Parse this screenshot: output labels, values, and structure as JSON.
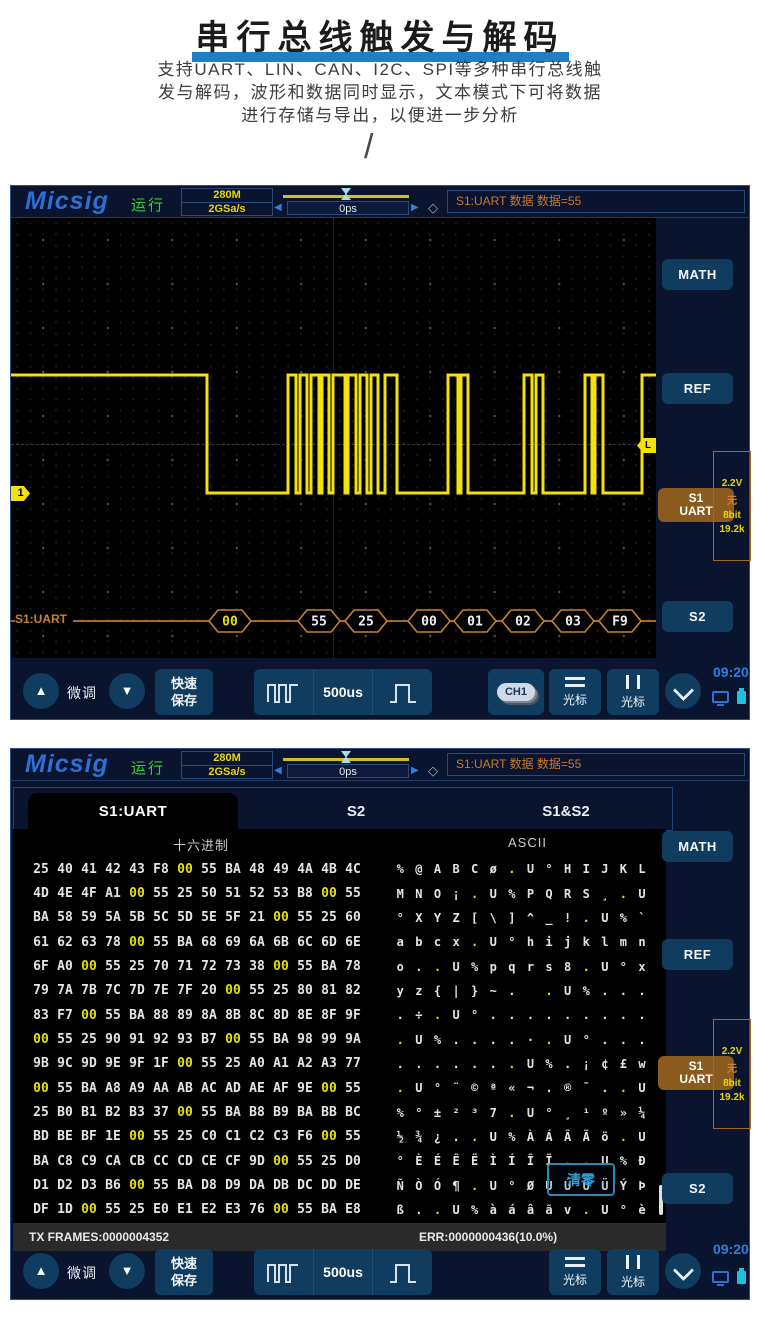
{
  "header": {
    "title": "串行总线触发与解码",
    "subtitle_line1": "支持UART、LIN、CAN、I2C、SPI等多种串行总线触",
    "subtitle_line2": "发与解码，波形和数据同时显示，文本模式下可将数据",
    "subtitle_line3": "进行存储与导出，以便进一步分析",
    "slash": "/"
  },
  "statusbar": {
    "logo": "Micsig",
    "run_state": "运行",
    "bandwidth": "280M",
    "sample_rate": "2GSa/s",
    "horizontal_position": "0ps",
    "trigger_info": "S1:UART 数据 数据=55",
    "left_arrow": "◀",
    "right_arrow": "▶",
    "diamond": "◇",
    "t_marker": "T"
  },
  "sidebar": {
    "math": "MATH",
    "ref": "REF",
    "s1_line1": "S1",
    "s1_line2": "UART",
    "s2": "S2",
    "channel_info": {
      "voltage": "2.2V",
      "parity": "无",
      "data_bits": "8bit",
      "baud_rate": "19.2k"
    }
  },
  "scope1": {
    "channel_badge": "1",
    "trigger_level_badge": "L",
    "decode_label": "S1:UART",
    "decode_values": [
      "00",
      "55",
      "25",
      "00",
      "01",
      "02",
      "03",
      "F9"
    ],
    "decode_highlight_index": 0
  },
  "toolbar": {
    "up_arrow": "▲",
    "down_arrow": "▼",
    "fine_tune": "微调",
    "quick_save_line1": "快速",
    "quick_save_line2": "保存",
    "timebase": "500us",
    "ch1": "CH1",
    "cursor_h_label": "光标",
    "cursor_v_label": "光标",
    "time": "09:20"
  },
  "scope2": {
    "tabs": [
      "S1:UART",
      "S2",
      "S1&S2"
    ],
    "active_tab": "S1:UART",
    "hex_header": "十六进制",
    "ascii_header": "ASCII",
    "hex_rows": [
      [
        "25",
        "40",
        "41",
        "42",
        "43",
        "F8",
        "00",
        "55",
        "BA",
        "48",
        "49",
        "4A",
        "4B",
        "4C"
      ],
      [
        "4D",
        "4E",
        "4F",
        "A1",
        "00",
        "55",
        "25",
        "50",
        "51",
        "52",
        "53",
        "B8",
        "00",
        "55"
      ],
      [
        "BA",
        "58",
        "59",
        "5A",
        "5B",
        "5C",
        "5D",
        "5E",
        "5F",
        "21",
        "00",
        "55",
        "25",
        "60"
      ],
      [
        "61",
        "62",
        "63",
        "78",
        "00",
        "55",
        "BA",
        "68",
        "69",
        "6A",
        "6B",
        "6C",
        "6D",
        "6E"
      ],
      [
        "6F",
        "A0",
        "00",
        "55",
        "25",
        "70",
        "71",
        "72",
        "73",
        "38",
        "00",
        "55",
        "BA",
        "78"
      ],
      [
        "79",
        "7A",
        "7B",
        "7C",
        "7D",
        "7E",
        "7F",
        "20",
        "00",
        "55",
        "25",
        "80",
        "81",
        "82"
      ],
      [
        "83",
        "F7",
        "00",
        "55",
        "BA",
        "88",
        "89",
        "8A",
        "8B",
        "8C",
        "8D",
        "8E",
        "8F",
        "9F"
      ],
      [
        "00",
        "55",
        "25",
        "90",
        "91",
        "92",
        "93",
        "B7",
        "00",
        "55",
        "BA",
        "98",
        "99",
        "9A"
      ],
      [
        "9B",
        "9C",
        "9D",
        "9E",
        "9F",
        "1F",
        "00",
        "55",
        "25",
        "A0",
        "A1",
        "A2",
        "A3",
        "77"
      ],
      [
        "00",
        "55",
        "BA",
        "A8",
        "A9",
        "AA",
        "AB",
        "AC",
        "AD",
        "AE",
        "AF",
        "9E",
        "00",
        "55"
      ],
      [
        "25",
        "B0",
        "B1",
        "B2",
        "B3",
        "37",
        "00",
        "55",
        "BA",
        "B8",
        "B9",
        "BA",
        "BB",
        "BC"
      ],
      [
        "BD",
        "BE",
        "BF",
        "1E",
        "00",
        "55",
        "25",
        "C0",
        "C1",
        "C2",
        "C3",
        "F6",
        "00",
        "55"
      ],
      [
        "BA",
        "C8",
        "C9",
        "CA",
        "CB",
        "CC",
        "CD",
        "CE",
        "CF",
        "9D",
        "00",
        "55",
        "25",
        "D0"
      ],
      [
        "D1",
        "D2",
        "D3",
        "B6",
        "00",
        "55",
        "BA",
        "D8",
        "D9",
        "DA",
        "DB",
        "DC",
        "DD",
        "DE"
      ],
      [
        "DF",
        "1D",
        "00",
        "55",
        "25",
        "E0",
        "E1",
        "E2",
        "E3",
        "76",
        "00",
        "55",
        "BA",
        "E8"
      ]
    ],
    "ascii_rows": [
      [
        "%",
        "@",
        "A",
        "B",
        "C",
        "ø",
        ".",
        "U",
        "°",
        "H",
        "I",
        "J",
        "K",
        "L"
      ],
      [
        "M",
        "N",
        "O",
        "¡",
        ".",
        "U",
        "%",
        "P",
        "Q",
        "R",
        "S",
        "¸",
        ".",
        "U"
      ],
      [
        "°",
        "X",
        "Y",
        "Z",
        "[",
        "\\",
        "]",
        "^",
        "_",
        "!",
        ".",
        "U",
        "%",
        "`"
      ],
      [
        "a",
        "b",
        "c",
        "x",
        ".",
        "U",
        "°",
        "h",
        "i",
        "j",
        "k",
        "l",
        "m",
        "n"
      ],
      [
        "o",
        ".",
        ".",
        "U",
        "%",
        "p",
        "q",
        "r",
        "s",
        "8",
        ".",
        "U",
        "°",
        "x"
      ],
      [
        "y",
        "z",
        "{",
        "|",
        "}",
        "~",
        ".",
        "",
        ".",
        "U",
        "%",
        ".",
        ".",
        "."
      ],
      [
        ".",
        "÷",
        ".",
        "U",
        "°",
        ".",
        ".",
        ".",
        ".",
        ".",
        ".",
        ".",
        ".",
        "."
      ],
      [
        ".",
        "U",
        "%",
        ".",
        ".",
        ".",
        ".",
        "·",
        ".",
        "U",
        "°",
        ".",
        ".",
        "."
      ],
      [
        ".",
        ".",
        ".",
        ".",
        ".",
        ".",
        ".",
        "U",
        "%",
        ".",
        "¡",
        "¢",
        "£",
        "w"
      ],
      [
        ".",
        "U",
        "°",
        "¨",
        "©",
        "ª",
        "«",
        "¬",
        ".",
        "®",
        "¯",
        ".",
        ".",
        "U"
      ],
      [
        "%",
        "°",
        "±",
        "²",
        "³",
        "7",
        ".",
        "U",
        "°",
        "¸",
        "¹",
        "º",
        "»",
        "¼"
      ],
      [
        "½",
        "¾",
        "¿",
        ".",
        ".",
        "U",
        "%",
        "À",
        "Á",
        "Â",
        "Ã",
        "ö",
        ".",
        "U"
      ],
      [
        "°",
        "È",
        "É",
        "Ê",
        "Ë",
        "Ì",
        "Í",
        "Î",
        "Ï",
        ".",
        ".",
        "U",
        "%",
        "Ð"
      ],
      [
        "Ñ",
        "Ò",
        "Ó",
        "¶",
        ".",
        "U",
        "°",
        "Ø",
        "Ù",
        "Ú",
        "Û",
        "Ü",
        "Ý",
        "Þ"
      ],
      [
        "ß",
        ".",
        ".",
        "U",
        "%",
        "à",
        "á",
        "â",
        "ã",
        "v",
        ".",
        "U",
        "°",
        "è"
      ]
    ],
    "clear_tooltip": "清零",
    "tx_frames": "TX FRAMES:0000004352",
    "err": "ERR:0000000436(10.0%)"
  },
  "colors": {
    "accent_blue": "#1f7fc4",
    "scope_bg": "#0a142e",
    "button_blue": "#0f3c5f",
    "trace_yellow": "#f2e20a",
    "decode_orange": "#c8822a",
    "run_green": "#33d433",
    "s1_brown": "#8a5a1e"
  }
}
